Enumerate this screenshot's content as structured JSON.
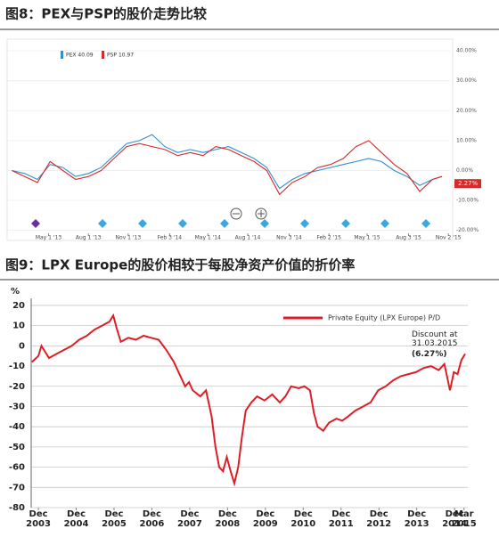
{
  "chart_data": [
    {
      "type": "line",
      "title": "图8：PEX与PSP的股价走势比较",
      "series": [
        {
          "name": "PEX 40.09",
          "color": "#2f8fd0",
          "x": [
            2013.1,
            2013.18,
            2013.26,
            2013.34,
            2013.42,
            2013.5,
            2013.58,
            2013.66,
            2013.74,
            2013.82,
            2013.9,
            2013.98,
            2014.06,
            2014.14,
            2014.22,
            2014.3,
            2014.38,
            2014.46,
            2014.54,
            2014.62,
            2014.7,
            2014.78,
            2014.86,
            2014.94,
            2015.02,
            2015.1,
            2015.18,
            2015.26,
            2015.34,
            2015.42,
            2015.5,
            2015.58,
            2015.66,
            2015.74,
            2015.8
          ],
          "values": [
            0,
            -1,
            -3,
            2,
            1,
            -2,
            -1,
            1,
            5,
            9,
            10,
            12,
            8,
            6,
            7,
            6,
            7,
            8,
            6,
            4,
            1,
            -6,
            -3,
            -1,
            0,
            1,
            2,
            3,
            4,
            3,
            0,
            -2,
            -5,
            -3,
            -2
          ]
        },
        {
          "name": "PSP 10.97",
          "color": "#d42a2a",
          "x": [
            2013.1,
            2013.18,
            2013.26,
            2013.34,
            2013.42,
            2013.5,
            2013.58,
            2013.66,
            2013.74,
            2013.82,
            2013.9,
            2013.98,
            2014.06,
            2014.14,
            2014.22,
            2014.3,
            2014.38,
            2014.46,
            2014.54,
            2014.62,
            2014.7,
            2014.78,
            2014.86,
            2014.94,
            2015.02,
            2015.1,
            2015.18,
            2015.26,
            2015.34,
            2015.42,
            2015.5,
            2015.58,
            2015.66,
            2015.74,
            2015.8
          ],
          "values": [
            0,
            -2,
            -4,
            3,
            0,
            -3,
            -2,
            0,
            4,
            8,
            9,
            8,
            7,
            5,
            6,
            5,
            8,
            7,
            5,
            3,
            0,
            -8,
            -4,
            -2,
            1,
            2,
            4,
            8,
            10,
            6,
            2,
            -1,
            -7,
            -3,
            -2
          ]
        }
      ],
      "annotations": [
        "2.27%"
      ],
      "xlim": [
        2013.07,
        2015.85
      ],
      "xticks": [
        {
          "value": 2013.33,
          "label": "May 1 '13"
        },
        {
          "value": 2013.58,
          "label": "Aug 1 '13"
        },
        {
          "value": 2013.83,
          "label": "Nov 1 '13"
        },
        {
          "value": 2014.09,
          "label": "Feb 3 '14"
        },
        {
          "value": 2014.33,
          "label": "May 1 '14"
        },
        {
          "value": 2014.58,
          "label": "Aug 1 '14"
        },
        {
          "value": 2014.84,
          "label": "Nov 3 '14"
        },
        {
          "value": 2015.09,
          "label": "Feb 2 '15"
        },
        {
          "value": 2015.33,
          "label": "May 1 '15"
        },
        {
          "value": 2015.59,
          "label": "Aug 3 '15"
        },
        {
          "value": 2015.84,
          "label": "Nov 2 '15"
        }
      ],
      "ylim": [
        -21,
        42.7
      ],
      "yticks": [
        {
          "value": 40,
          "label": "40.00%"
        },
        {
          "value": 30,
          "label": "30.00%"
        },
        {
          "value": 20,
          "label": "20.00%"
        },
        {
          "value": 10,
          "label": "10.00%"
        },
        {
          "value": 0,
          "label": "0.00%"
        },
        {
          "value": -10,
          "label": "-10.00%"
        },
        {
          "value": -20,
          "label": "-20.00%"
        }
      ],
      "grid": true
    },
    {
      "type": "line",
      "title": "图9：LPX Europe的股价相较于每股净资产价值的折价率",
      "y_label": "%",
      "series": [
        {
          "name": "Private Equity (LPX Europe) P/D",
          "color": "#dc1f26",
          "x": [
            2003.75,
            2003.92,
            2004.0,
            2004.2,
            2004.4,
            2004.6,
            2004.8,
            2005.0,
            2005.2,
            2005.4,
            2005.6,
            2005.8,
            2005.9,
            2006.0,
            2006.1,
            2006.3,
            2006.5,
            2006.7,
            2006.9,
            2007.1,
            2007.3,
            2007.5,
            2007.6,
            2007.8,
            2007.9,
            2008.0,
            2008.2,
            2008.35,
            2008.5,
            2008.6,
            2008.7,
            2008.8,
            2008.9,
            2009.0,
            2009.1,
            2009.2,
            2009.3,
            2009.4,
            2009.55,
            2009.7,
            2009.9,
            2010.1,
            2010.3,
            2010.45,
            2010.6,
            2010.8,
            2010.95,
            2011.1,
            2011.2,
            2011.3,
            2011.45,
            2011.6,
            2011.8,
            2011.95,
            2012.1,
            2012.3,
            2012.5,
            2012.7,
            2012.9,
            2013.1,
            2013.3,
            2013.5,
            2013.7,
            2013.9,
            2014.1,
            2014.3,
            2014.5,
            2014.65,
            2014.8,
            2014.9,
            2015.0,
            2015.1,
            2015.2
          ],
          "values": [
            -8,
            -5,
            0,
            -6,
            -4,
            -2,
            0,
            3,
            5,
            8,
            10,
            12,
            15,
            8,
            2,
            4,
            3,
            5,
            4,
            3,
            -2,
            -8,
            -12,
            -20,
            -18,
            -22,
            -25,
            -22,
            -35,
            -50,
            -60,
            -62,
            -55,
            -62,
            -68,
            -60,
            -45,
            -32,
            -28,
            -25,
            -27,
            -24,
            -28,
            -25,
            -20,
            -21,
            -20,
            -22,
            -33,
            -40,
            -42,
            -38,
            -36,
            -37,
            -35,
            -32,
            -30,
            -28,
            -22,
            -20,
            -17,
            -15,
            -14,
            -13,
            -11,
            -10,
            -12,
            -9,
            -22,
            -13,
            -14,
            -7,
            -4
          ]
        }
      ],
      "annotations": [
        "Discount at\n31.03.2015",
        "(6.27%)"
      ],
      "xlim": [
        2003.73,
        2015.27
      ],
      "xticks": [
        {
          "value": 2003.92,
          "label": "Dec\n2003"
        },
        {
          "value": 2004.92,
          "label": "Dec\n2004"
        },
        {
          "value": 2005.92,
          "label": "Dec\n2005"
        },
        {
          "value": 2006.92,
          "label": "Dec\n2006"
        },
        {
          "value": 2007.92,
          "label": "Dec\n2007"
        },
        {
          "value": 2008.92,
          "label": "Dec\n2008"
        },
        {
          "value": 2009.92,
          "label": "Dec\n2009"
        },
        {
          "value": 2010.92,
          "label": "Dec\n2010"
        },
        {
          "value": 2011.92,
          "label": "Dec\n2011"
        },
        {
          "value": 2012.92,
          "label": "Dec\n2012"
        },
        {
          "value": 2013.92,
          "label": "Dec\n2013"
        },
        {
          "value": 2014.92,
          "label": "Dec\n2014"
        },
        {
          "value": 2015.17,
          "label": "Mar\n2015"
        }
      ],
      "ylim": [
        -80,
        23.5
      ],
      "yticks": [
        20,
        10,
        0,
        -10,
        -20,
        -30,
        -40,
        -50,
        -60,
        -70,
        -80
      ],
      "grid": true
    }
  ]
}
